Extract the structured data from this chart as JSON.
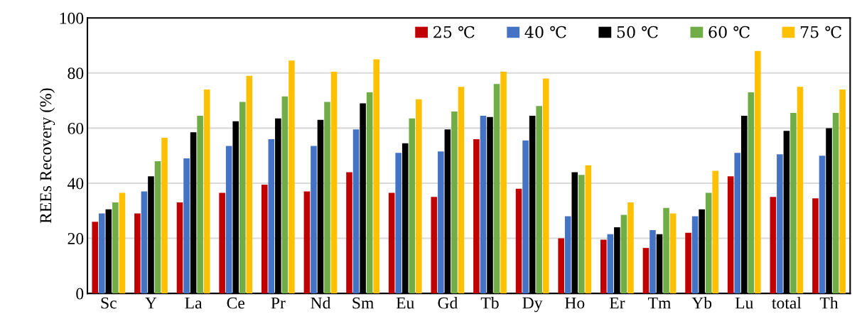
{
  "chart_data": {
    "type": "bar",
    "ylabel": "REEs Recovery (%)",
    "categories": [
      "Sc",
      "Y",
      "La",
      "Ce",
      "Pr",
      "Nd",
      "Sm",
      "Eu",
      "Gd",
      "Tb",
      "Dy",
      "Ho",
      "Er",
      "Tm",
      "Yb",
      "Lu",
      "total",
      "Th"
    ],
    "series": [
      {
        "name": "25 ℃",
        "color": "#c00000",
        "values": [
          26,
          29,
          33,
          36.5,
          39.5,
          37,
          44,
          36.5,
          35,
          56,
          38,
          20,
          19.5,
          16.5,
          22,
          42.5,
          35,
          34.5
        ]
      },
      {
        "name": "40 ℃",
        "color": "#4472c4",
        "values": [
          29,
          37,
          49,
          53.5,
          56,
          53.5,
          59.5,
          51,
          51.5,
          64.5,
          55.5,
          28,
          21.5,
          23,
          28,
          51,
          50.5,
          50
        ]
      },
      {
        "name": "50 ℃",
        "color": "#000000",
        "values": [
          30.5,
          42.5,
          58.5,
          62.5,
          63.5,
          63,
          69,
          54.5,
          59.5,
          64,
          64.5,
          44,
          24,
          21.5,
          30.5,
          64.5,
          59,
          60
        ]
      },
      {
        "name": "60 ℃",
        "color": "#70ad47",
        "values": [
          33,
          48,
          64.5,
          69.5,
          71.5,
          69.5,
          73,
          63.5,
          66,
          76,
          68,
          43,
          28.5,
          31,
          36.5,
          73,
          65.5,
          65.5
        ]
      },
      {
        "name": "75 ℃",
        "color": "#ffc000",
        "values": [
          36.5,
          56.5,
          74,
          79,
          84.5,
          80.5,
          85,
          70.5,
          75,
          80.5,
          78,
          46.5,
          33,
          29,
          44.5,
          88,
          75,
          74
        ]
      }
    ],
    "ylim": [
      0,
      100
    ],
    "yticks": [
      0,
      20,
      40,
      60,
      80,
      100
    ],
    "grid": "y",
    "legend": "top right"
  }
}
